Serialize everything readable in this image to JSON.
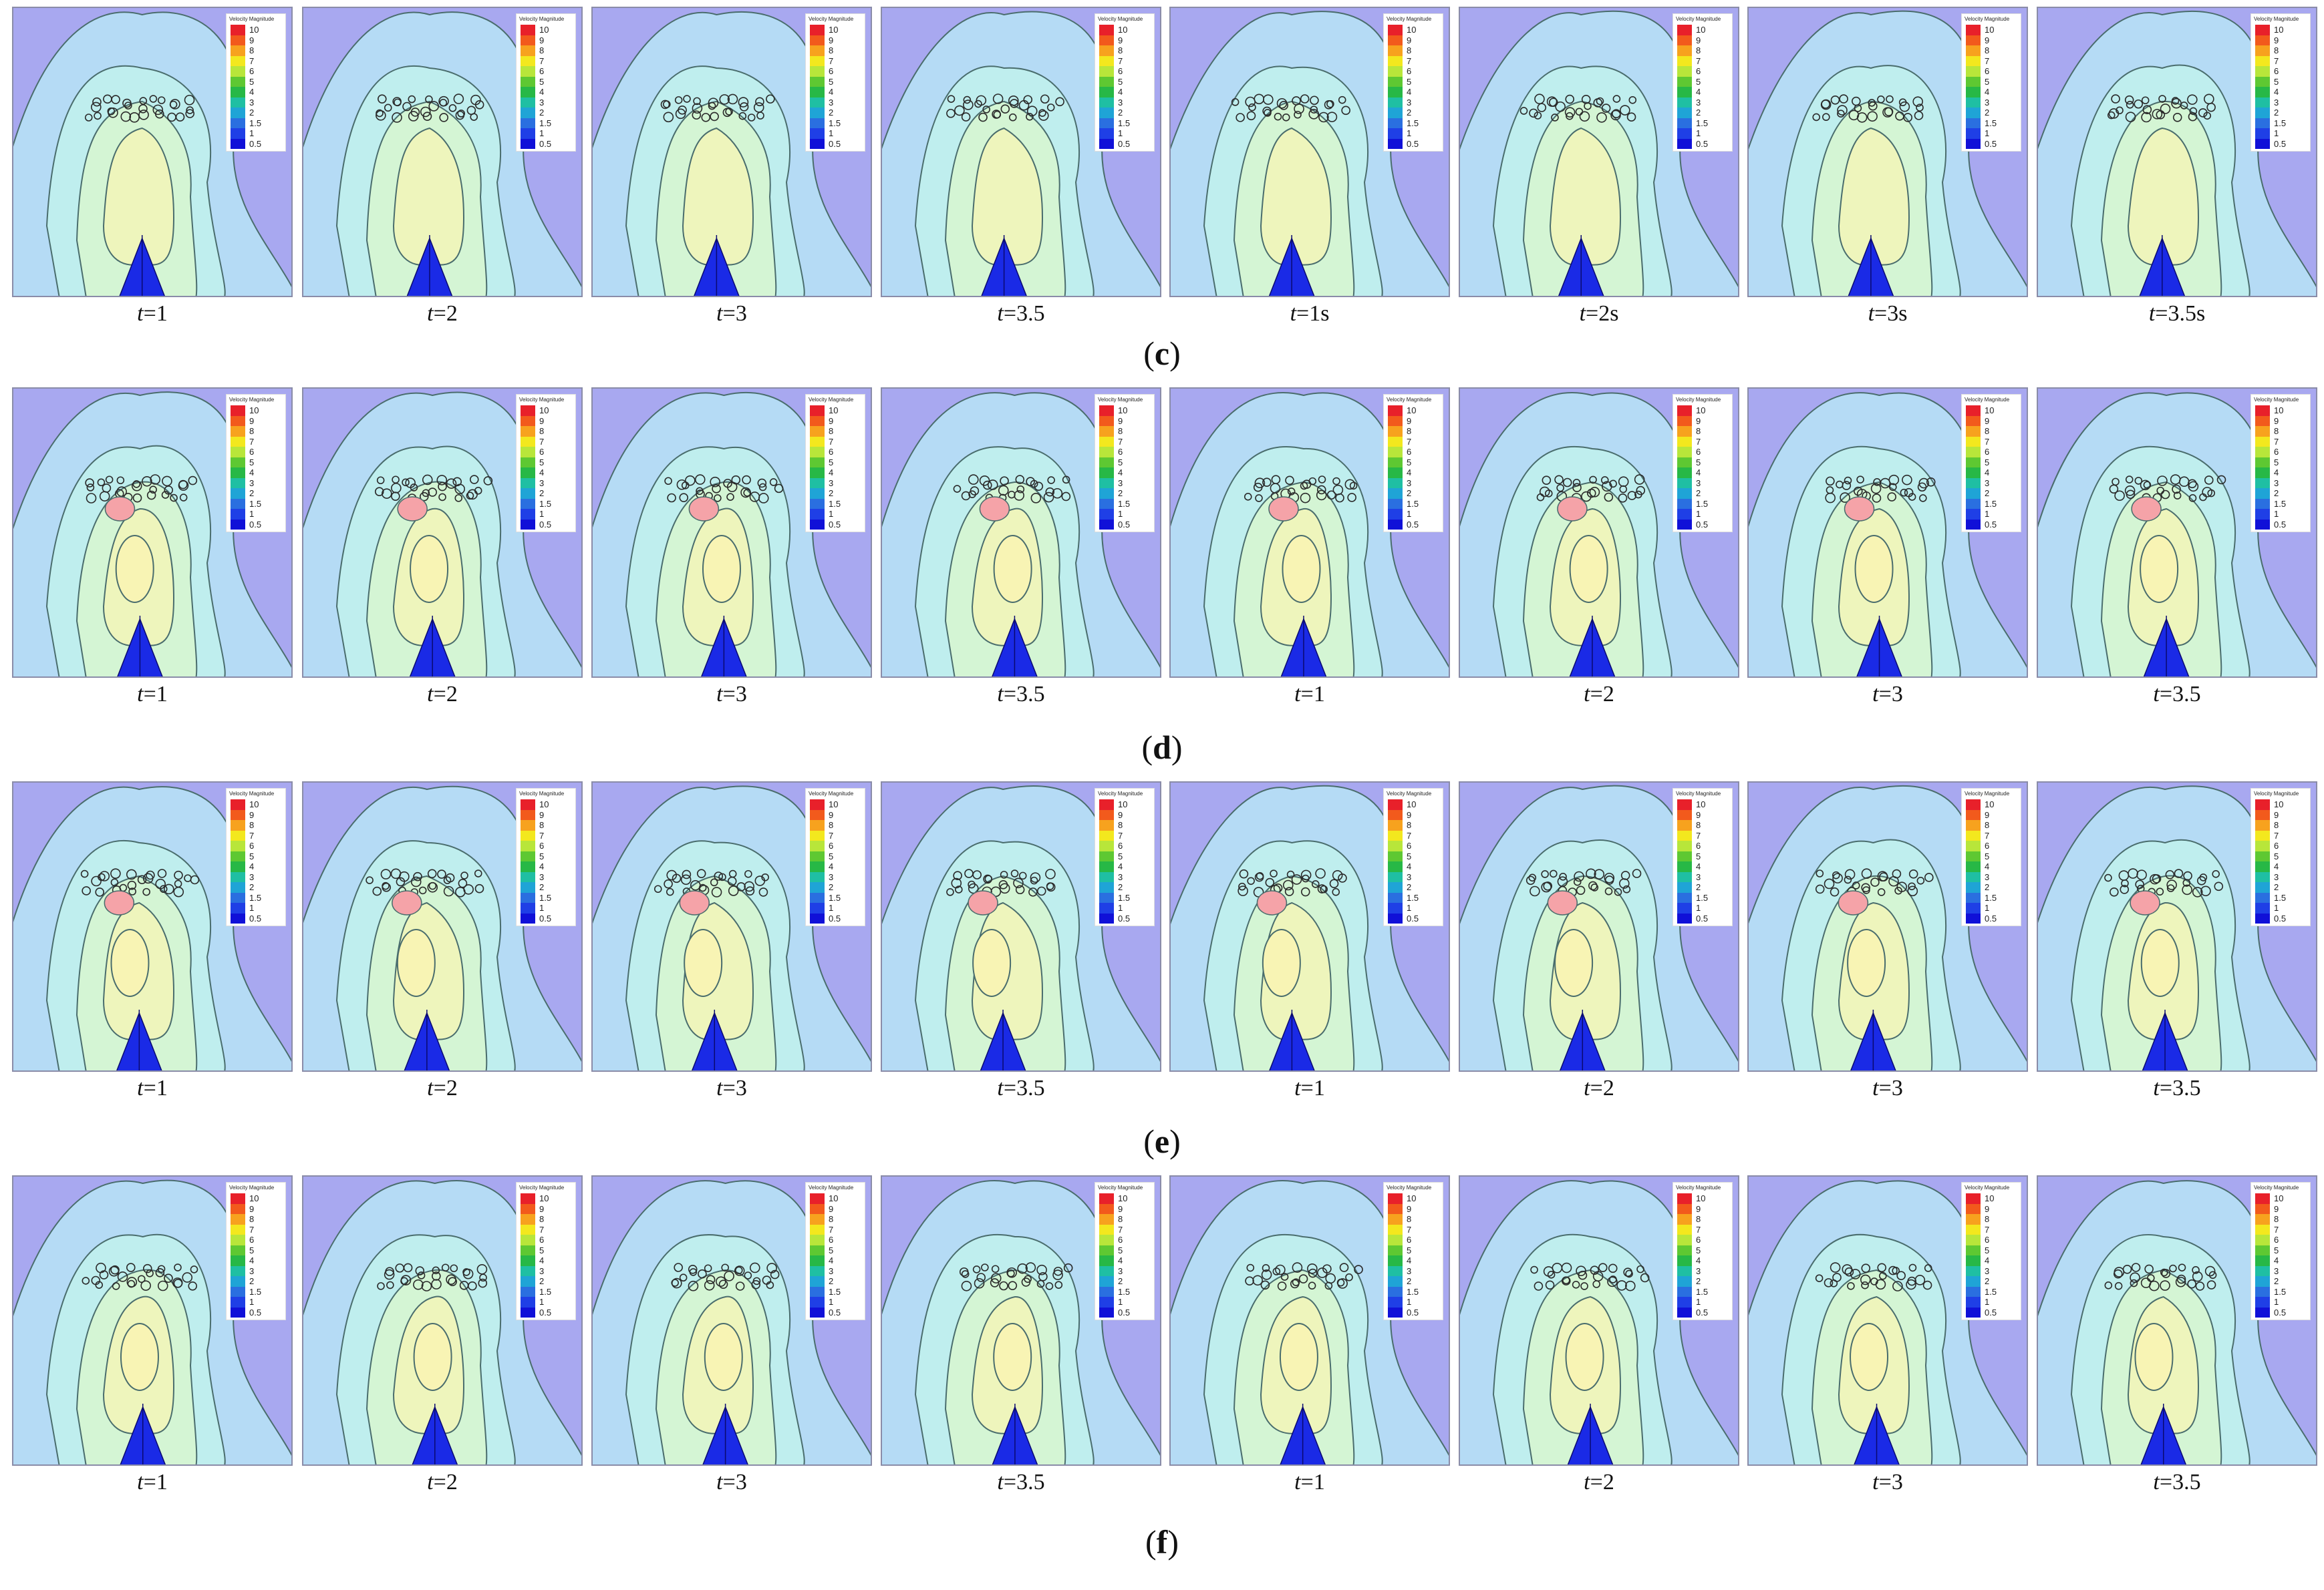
{
  "legend": {
    "title": "Velocity Magnitude",
    "ticks": [
      "10",
      "9",
      "8",
      "7",
      "6",
      "5",
      "4",
      "3",
      "2",
      "1.5",
      "1",
      "0.5"
    ],
    "colors": [
      "#e8202a",
      "#f25a1c",
      "#f7a21e",
      "#f3e81e",
      "#b8e63a",
      "#5ec832",
      "#27b846",
      "#1fbfa3",
      "#1fa4d6",
      "#2a6fe0",
      "#1f3fe6",
      "#1010d8"
    ]
  },
  "colors": {
    "background": "#a8a8f0",
    "level1": "#b5dbf5",
    "level2": "#bfeeee",
    "level3": "#d4f5d4",
    "level4": "#eef5bc",
    "level5": "#f8f4b4",
    "hot": "#f5a3a8",
    "contour": "#4a6d6d",
    "cone": "#1a2ae6"
  },
  "rows": [
    {
      "label": "c",
      "panels": [
        {
          "caption": "1",
          "unit": ""
        },
        {
          "caption": "2",
          "unit": ""
        },
        {
          "caption": "3",
          "unit": ""
        },
        {
          "caption": "3.5",
          "unit": ""
        },
        {
          "caption": "1",
          "unit": "s"
        },
        {
          "caption": "2",
          "unit": "s"
        },
        {
          "caption": "3",
          "unit": "s"
        },
        {
          "caption": "3.5",
          "unit": "s"
        }
      ]
    },
    {
      "label": "d",
      "panels": [
        {
          "caption": "1",
          "unit": ""
        },
        {
          "caption": "2",
          "unit": ""
        },
        {
          "caption": "3",
          "unit": ""
        },
        {
          "caption": "3.5",
          "unit": ""
        },
        {
          "caption": "1",
          "unit": ""
        },
        {
          "caption": "2",
          "unit": ""
        },
        {
          "caption": "3",
          "unit": ""
        },
        {
          "caption": "3.5",
          "unit": ""
        }
      ]
    },
    {
      "label": "e",
      "panels": [
        {
          "caption": "1",
          "unit": ""
        },
        {
          "caption": "2",
          "unit": ""
        },
        {
          "caption": "3",
          "unit": ""
        },
        {
          "caption": "3.5",
          "unit": ""
        },
        {
          "caption": "1",
          "unit": ""
        },
        {
          "caption": "2",
          "unit": ""
        },
        {
          "caption": "3",
          "unit": ""
        },
        {
          "caption": "3.5",
          "unit": ""
        }
      ]
    },
    {
      "label": "f",
      "panels": [
        {
          "caption": "1",
          "unit": ""
        },
        {
          "caption": "2",
          "unit": ""
        },
        {
          "caption": "3",
          "unit": ""
        },
        {
          "caption": "3.5",
          "unit": ""
        },
        {
          "caption": "1",
          "unit": ""
        },
        {
          "caption": "2",
          "unit": ""
        },
        {
          "caption": "3",
          "unit": ""
        },
        {
          "caption": "3.5",
          "unit": ""
        }
      ]
    }
  ],
  "caption_prefix": "t="
}
